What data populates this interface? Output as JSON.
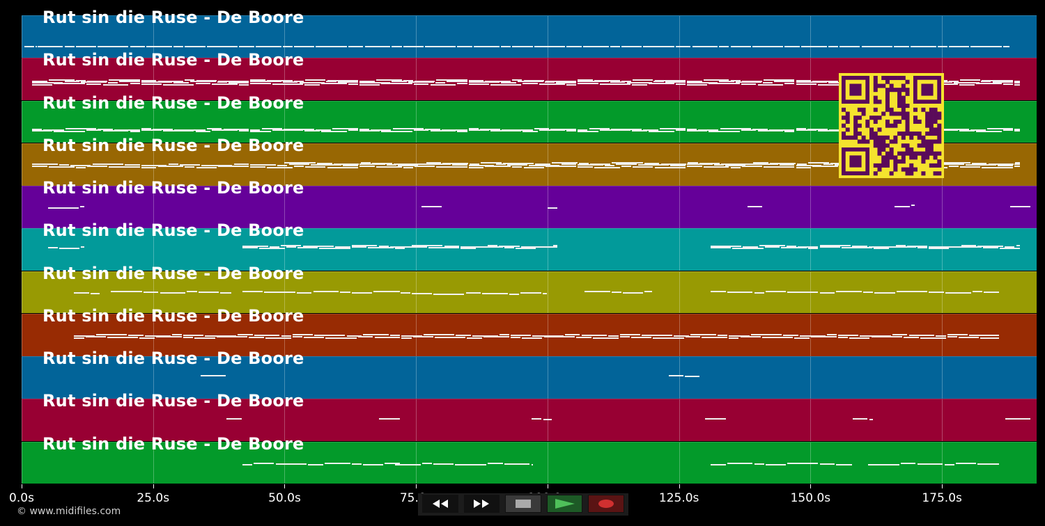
{
  "tracks": [
    {
      "title": "Rut sin die Ruse - De Boore",
      "color": "#026499"
    },
    {
      "title": "Rut sin die Ruse - De Boore",
      "color": "#980033"
    },
    {
      "title": "Rut sin die Ruse - De Boore",
      "color": "#039a2a"
    },
    {
      "title": "Rut sin die Ruse - De Boore",
      "color": "#986703"
    },
    {
      "title": "Rut sin die Ruse - De Boore",
      "color": "#650099"
    },
    {
      "title": "Rut sin die Ruse - De Boore",
      "color": "#029a9a"
    },
    {
      "title": "Rut sin die Ruse - De Boore",
      "color": "#989a03"
    },
    {
      "title": "Rut sin die Ruse - De Boore",
      "color": "#982b03"
    },
    {
      "title": "Rut sin die Ruse - De Boore",
      "color": "#026499"
    },
    {
      "title": "Rut sin die Ruse - De Boore",
      "color": "#980033"
    },
    {
      "title": "Rut sin die Ruse - De Boore",
      "color": "#039a2a"
    }
  ],
  "timeline": {
    "max_seconds": 193,
    "ticks": [
      "0.0s",
      "25.0s",
      "50.0s",
      "75.0s",
      "100.0s",
      "125.0s",
      "150.0s",
      "175.0s"
    ],
    "tick_values": [
      0,
      25,
      50,
      75,
      100,
      125,
      150,
      175
    ]
  },
  "copyright": "© www.midifiles.com",
  "transport": {
    "rewind_icon": "rewind-icon",
    "forward_icon": "fast-forward-icon",
    "stop_icon": "stop-icon",
    "play_icon": "play-icon",
    "record_icon": "record-icon"
  },
  "qr_code": {
    "icon": "qr-code-icon",
    "fg": "#5a0a5a",
    "bg": "#f5e32e"
  }
}
